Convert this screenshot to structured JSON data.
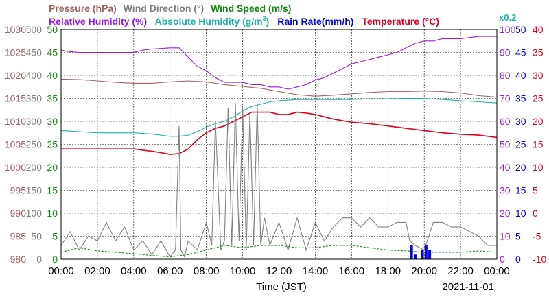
{
  "chart_data": {
    "type": "line",
    "date": "2021-11-01",
    "xlabel": "Time (JST)",
    "x_ticks": [
      "00:00",
      "02:00",
      "04:00",
      "06:00",
      "08:00",
      "10:00",
      "12:00",
      "14:00",
      "16:00",
      "18:00",
      "20:00",
      "22:00",
      "00:00"
    ],
    "x_range_hours": [
      0,
      24
    ],
    "grid": true,
    "legend_placement": "top",
    "legend": {
      "pressure": "Pressure (hPa)",
      "wind_dir": "Wind Direction (°)",
      "wind_speed": "Wind Speed (m/s)",
      "rh": "Relative Humidity (%)",
      "ah_prefix": "Absolute Humidity (g/m",
      "ah_sup": "3",
      "ah_suffix": ")",
      "rain": "Rain Rate(mm/h)",
      "temp": "Temperature (°C)",
      "ah_scale": "x0.2"
    },
    "axes": {
      "pressure": {
        "range": [
          980,
          1030
        ],
        "ticks": [
          "1030",
          "1025",
          "1020",
          "1015",
          "1010",
          "1005",
          "1000",
          "995",
          "990",
          "985",
          "980"
        ],
        "color": "#a06464"
      },
      "wind_dir": {
        "range": [
          0,
          500
        ],
        "ticks": [
          "500",
          "450",
          "400",
          "350",
          "300",
          "250",
          "200",
          "150",
          "100",
          "50",
          "0"
        ],
        "color": "#808080"
      },
      "wind_speed": {
        "range": [
          0,
          50
        ],
        "ticks": [
          "50",
          "45",
          "40",
          "35",
          "30",
          "25",
          "20",
          "15",
          "10",
          "5",
          "0"
        ],
        "color": "#108a10"
      },
      "rh": {
        "range": [
          0,
          100
        ],
        "ticks": [
          "100",
          "90",
          "80",
          "70",
          "60",
          "50",
          "40",
          "30",
          "20",
          "10",
          "0"
        ],
        "color": "#9a1ae0"
      },
      "rain": {
        "range": [
          0,
          50
        ],
        "ticks": [
          "50",
          "45",
          "40",
          "35",
          "30",
          "25",
          "20",
          "15",
          "10",
          "5",
          "0"
        ],
        "color": "#0000e0"
      },
      "temp": {
        "range": [
          -10,
          40
        ],
        "ticks": [
          "40",
          "35",
          "30",
          "25",
          "20",
          "15",
          "10",
          "5",
          "0",
          "-5",
          "-10"
        ],
        "color": "#e00020"
      }
    },
    "series": [
      {
        "name": "Pressure (hPa)",
        "key": "pressure",
        "axis": "pressure",
        "color": "#a06464",
        "x": [
          0,
          1,
          2,
          3,
          4,
          5,
          6,
          7,
          8,
          9,
          10,
          11,
          12,
          13,
          14,
          15,
          16,
          17,
          18,
          19,
          20,
          21,
          22,
          23,
          24
        ],
        "y": [
          1019.2,
          1019.1,
          1018.8,
          1018.5,
          1018.3,
          1018.3,
          1018.6,
          1018.8,
          1018.6,
          1018.0,
          1017.6,
          1017.2,
          1016.5,
          1015.8,
          1015.5,
          1015.7,
          1016.0,
          1016.3,
          1016.5,
          1016.5,
          1016.6,
          1016.5,
          1016.2,
          1015.6,
          1015.3
        ]
      },
      {
        "name": "Relative Humidity (%)",
        "key": "rh",
        "axis": "rh",
        "color": "#9a1ae0",
        "x": [
          0,
          0.3,
          1,
          2,
          3,
          4,
          4.5,
          5,
          6,
          6.5,
          7,
          7.5,
          8,
          8.5,
          9,
          9.5,
          10,
          10.5,
          11,
          11.5,
          12,
          12.5,
          13,
          13.5,
          14,
          14.5,
          15,
          15.5,
          16,
          16.5,
          17,
          17.5,
          18,
          18.5,
          19,
          19.5,
          20,
          20.5,
          21,
          22,
          23,
          24
        ],
        "y": [
          91,
          90.5,
          90,
          90,
          90,
          90,
          91,
          91.5,
          92,
          92,
          88,
          84,
          82,
          79,
          77,
          77,
          77,
          76,
          76,
          75,
          75,
          74,
          75,
          76,
          78,
          79,
          81,
          83,
          85,
          86,
          87,
          88,
          89,
          90,
          92,
          94,
          95,
          95,
          96,
          96,
          97,
          97
        ]
      },
      {
        "name": "Absolute Humidity (g/m3) x0.2",
        "key": "ah",
        "axis": "rh",
        "color": "#20b2aa",
        "x": [
          0,
          1,
          2,
          3,
          4,
          5,
          6,
          6.5,
          7,
          7.5,
          8,
          8.5,
          9,
          9.5,
          10,
          10.5,
          11,
          11.5,
          12,
          13,
          14,
          15,
          16,
          17,
          18,
          19,
          20,
          21,
          22,
          23,
          24
        ],
        "y": [
          56,
          55.5,
          55,
          55,
          55,
          54.5,
          53.5,
          53.5,
          54,
          55.5,
          57.5,
          59,
          60,
          62,
          64.5,
          66.5,
          67.5,
          68.5,
          69,
          69.5,
          69.5,
          69.5,
          69.5,
          69.8,
          69.8,
          70,
          70,
          69.5,
          69,
          68.5,
          68
        ]
      },
      {
        "name": "Temperature (°C)",
        "key": "temp",
        "axis": "temp",
        "color": "#e00020",
        "x": [
          0,
          1,
          2,
          3,
          4,
          5,
          5.5,
          6,
          6.5,
          7,
          7.5,
          8,
          8.5,
          9,
          9.5,
          10,
          10.5,
          11,
          11.5,
          12,
          12.5,
          13,
          13.5,
          14,
          14.5,
          15,
          16,
          17,
          18,
          19,
          20,
          21,
          22,
          23,
          24
        ],
        "y": [
          14,
          14,
          14,
          14,
          14,
          13.5,
          13.2,
          12.8,
          13,
          14,
          16,
          17.5,
          18.5,
          19,
          20,
          21,
          22,
          22,
          22,
          21.5,
          21.5,
          22,
          21.8,
          21.5,
          21,
          20.5,
          19.8,
          19.5,
          19,
          18.5,
          18,
          17.5,
          17.2,
          17,
          16.5
        ]
      },
      {
        "name": "Wind Direction (°)",
        "key": "wind_dir",
        "axis": "wind_dir",
        "color": "#808080",
        "x": [
          0,
          0.5,
          1,
          1.5,
          2,
          2.5,
          3,
          3.5,
          4,
          4.5,
          5,
          5.5,
          6,
          6.3,
          6.5,
          6.6,
          6.8,
          7,
          7.5,
          8,
          8.3,
          8.5,
          8.8,
          9,
          9.2,
          9.4,
          9.6,
          9.8,
          10,
          10.2,
          10.4,
          10.6,
          10.8,
          11,
          11.2,
          11.5,
          12,
          12.5,
          13,
          13.5,
          14,
          14.5,
          15,
          15.5,
          16,
          16.5,
          17,
          17.5,
          18,
          18.5,
          19,
          19.2,
          19.5,
          20,
          20.5,
          21,
          21.5,
          22,
          22.5,
          23,
          23.5,
          24
        ],
        "y": [
          30,
          60,
          20,
          50,
          40,
          80,
          40,
          70,
          20,
          40,
          10,
          40,
          5,
          20,
          290,
          20,
          5,
          40,
          20,
          80,
          30,
          300,
          20,
          40,
          330,
          30,
          340,
          40,
          330,
          20,
          320,
          30,
          340,
          30,
          90,
          30,
          80,
          20,
          90,
          20,
          80,
          40,
          70,
          90,
          90,
          70,
          90,
          70,
          70,
          80,
          80,
          40,
          30,
          20,
          80,
          80,
          70,
          70,
          60,
          50,
          30,
          30
        ]
      },
      {
        "name": "Wind Speed (m/s)",
        "key": "wind_speed",
        "axis": "wind_speed",
        "color": "#108a10",
        "x": [
          0,
          1,
          2,
          3,
          4,
          5,
          6,
          7,
          8,
          9,
          10,
          11,
          12,
          13,
          14,
          15,
          16,
          17,
          18,
          19,
          20,
          21,
          22,
          23,
          24
        ],
        "y": [
          1.5,
          2.5,
          1.8,
          1.5,
          1.2,
          0.8,
          0.5,
          1,
          2,
          3,
          2.5,
          3,
          3,
          2.5,
          2.5,
          3,
          3,
          2.5,
          2,
          1.8,
          1.5,
          1.5,
          1.5,
          1.8,
          1.5
        ]
      },
      {
        "name": "Rain Rate(mm/h)",
        "key": "rain",
        "axis": "rain",
        "color": "#0000e0",
        "x": [
          19.1,
          19.3,
          19.5,
          19.7,
          19.9,
          20.1,
          20.3,
          20.5
        ],
        "y": [
          0,
          3,
          1,
          0,
          2,
          3,
          2,
          0
        ]
      }
    ]
  }
}
